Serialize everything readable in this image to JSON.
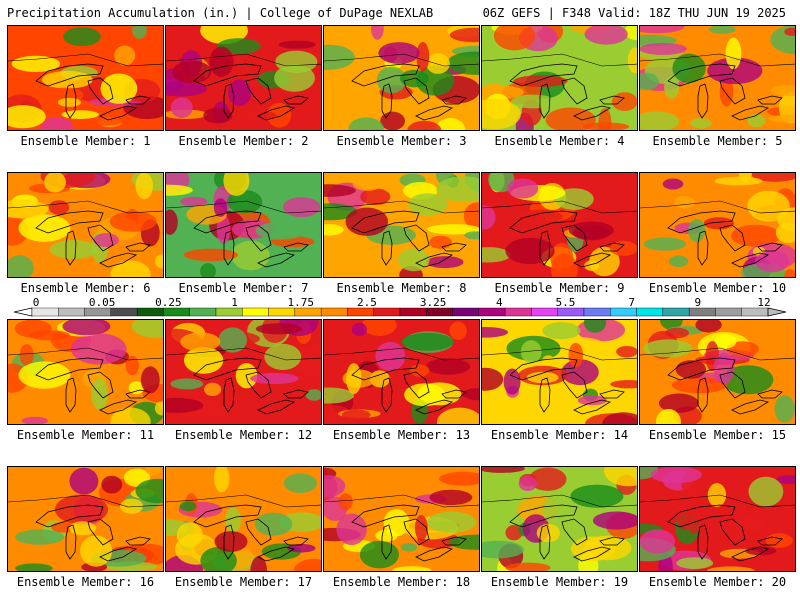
{
  "header": {
    "left_title": "Precipitation Accumulation (in.) | College of DuPage NEXLAB",
    "right_title": "06Z GEFS | F348 Valid: 18Z THU JUN 19 2025"
  },
  "colorbar": {
    "labels": [
      "0",
      "0.05",
      "0.25",
      "1",
      "1.75",
      "2.5",
      "3.25",
      "4",
      "5.5",
      "7",
      "9",
      "12"
    ],
    "colors": [
      "#e6e6e6",
      "#bdbdbd",
      "#969696",
      "#4d4d4d",
      "#0c5c0c",
      "#1a8c1a",
      "#52b152",
      "#9acd32",
      "#ffff00",
      "#ffd700",
      "#ffa500",
      "#ff8c00",
      "#ff4500",
      "#e31a1c",
      "#b10026",
      "#800026",
      "#7a0177",
      "#ae017e",
      "#dd3497",
      "#e542f4",
      "#9b59f6",
      "#6c7cf5",
      "#33ccff",
      "#00e5e5",
      "#2ea6a6",
      "#7f7f7f",
      "#9e9e9e",
      "#bdbdbd"
    ]
  },
  "panels": [
    {
      "caption": "Ensemble Member: 1",
      "fill": "#ff4500"
    },
    {
      "caption": "Ensemble Member: 2",
      "fill": "#e31a1c"
    },
    {
      "caption": "Ensemble Member: 3",
      "fill": "#ffa500"
    },
    {
      "caption": "Ensemble Member: 4",
      "fill": "#9acd32"
    },
    {
      "caption": "Ensemble Member: 5",
      "fill": "#ff8c00"
    },
    {
      "caption": "Ensemble Member: 6",
      "fill": "#ff8c00"
    },
    {
      "caption": "Ensemble Member: 7",
      "fill": "#52b152"
    },
    {
      "caption": "Ensemble Member: 8",
      "fill": "#ffa500"
    },
    {
      "caption": "Ensemble Member: 9",
      "fill": "#e31a1c"
    },
    {
      "caption": "Ensemble Member: 10",
      "fill": "#ff8c00"
    },
    {
      "caption": "Ensemble Member: 11",
      "fill": "#ff8c00"
    },
    {
      "caption": "Ensemble Member: 12",
      "fill": "#e31a1c"
    },
    {
      "caption": "Ensemble Member: 13",
      "fill": "#e31a1c"
    },
    {
      "caption": "Ensemble Member: 14",
      "fill": "#ffd700"
    },
    {
      "caption": "Ensemble Member: 15",
      "fill": "#ff8c00"
    },
    {
      "caption": "Ensemble Member: 16",
      "fill": "#ff8c00"
    },
    {
      "caption": "Ensemble Member: 17",
      "fill": "#ff8c00"
    },
    {
      "caption": "Ensemble Member: 18",
      "fill": "#ff8c00"
    },
    {
      "caption": "Ensemble Member: 19",
      "fill": "#9acd32"
    },
    {
      "caption": "Ensemble Member: 20",
      "fill": "#e31a1c"
    }
  ]
}
